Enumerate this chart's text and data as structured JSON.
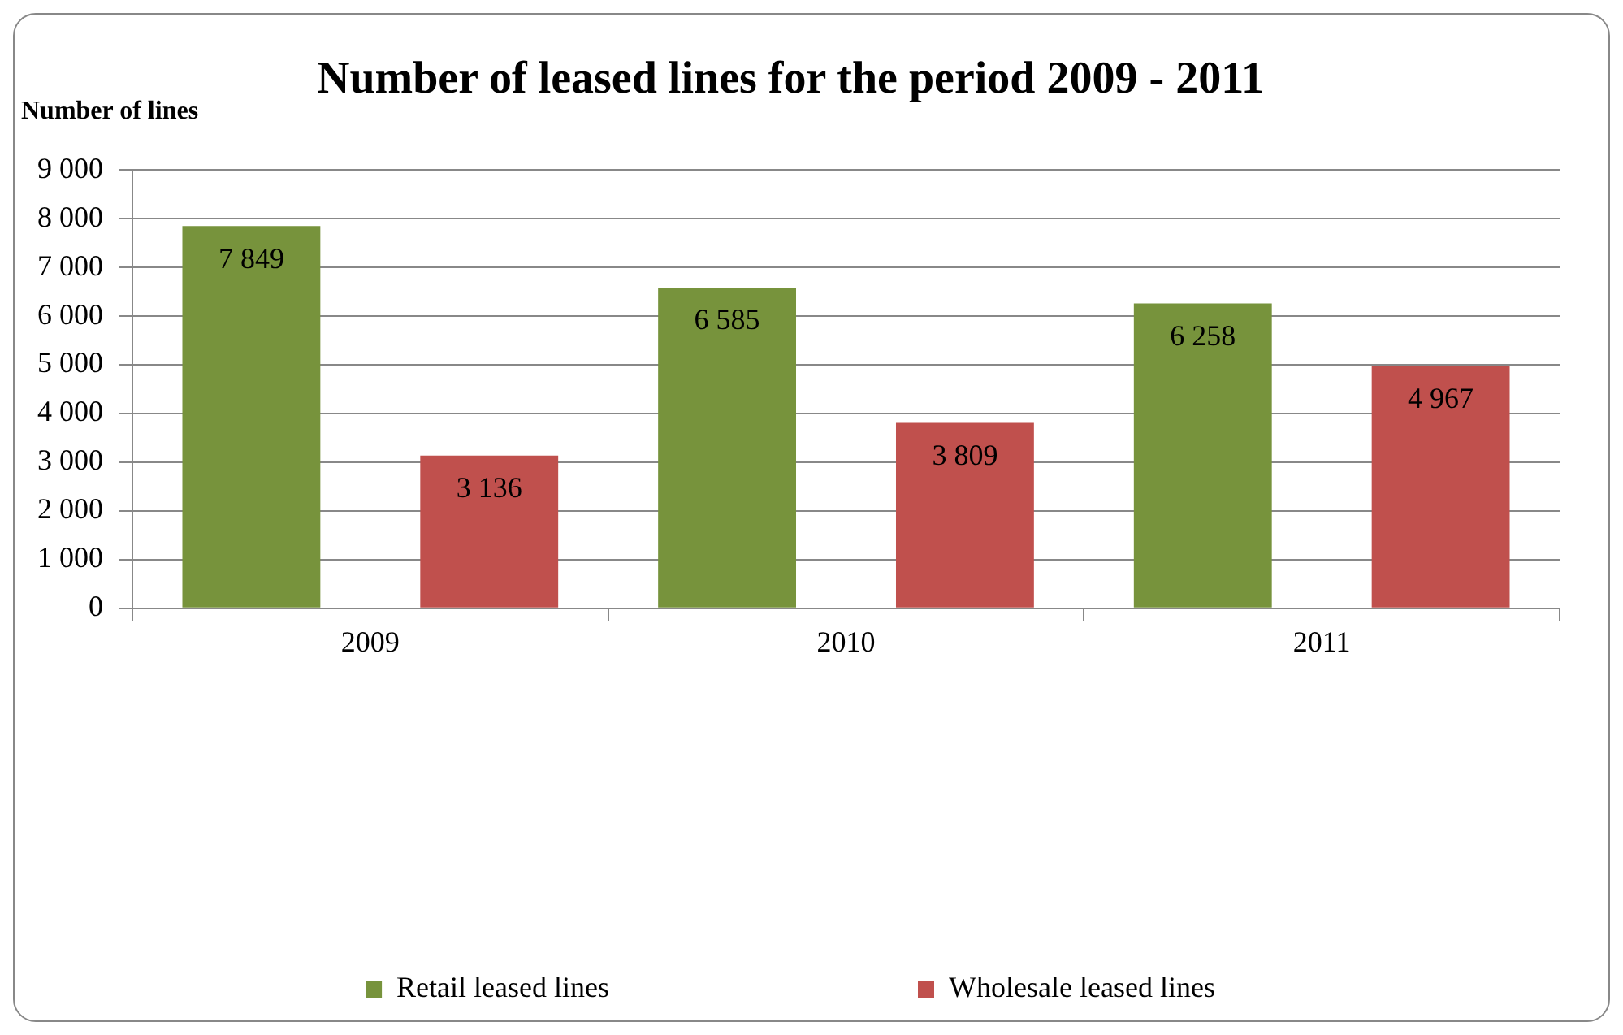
{
  "chart_data": {
    "type": "bar",
    "title": "Number of leased lines for the period 2009 - 2011",
    "ylabel": "Number of lines",
    "categories": [
      "2009",
      "2010",
      "2011"
    ],
    "series": [
      {
        "name": "Retail leased lines",
        "color": "#77933c",
        "values": [
          7849,
          6585,
          6258
        ],
        "value_labels": [
          "7 849",
          "6 585",
          "6 258"
        ]
      },
      {
        "name": "Wholesale leased lines",
        "color": "#c0504d",
        "values": [
          3136,
          3809,
          4967
        ],
        "value_labels": [
          "3 136",
          "3 809",
          "4 967"
        ]
      }
    ],
    "ylim": [
      0,
      9000
    ],
    "yticks": [
      {
        "value": 0,
        "label": "0"
      },
      {
        "value": 1000,
        "label": "1 000"
      },
      {
        "value": 2000,
        "label": "2 000"
      },
      {
        "value": 3000,
        "label": "3 000"
      },
      {
        "value": 4000,
        "label": "4 000"
      },
      {
        "value": 5000,
        "label": "5 000"
      },
      {
        "value": 6000,
        "label": "6 000"
      },
      {
        "value": 7000,
        "label": "7 000"
      },
      {
        "value": 8000,
        "label": "8 000"
      },
      {
        "value": 9000,
        "label": "9 000"
      }
    ],
    "grid": "y",
    "legend": "bottom"
  }
}
